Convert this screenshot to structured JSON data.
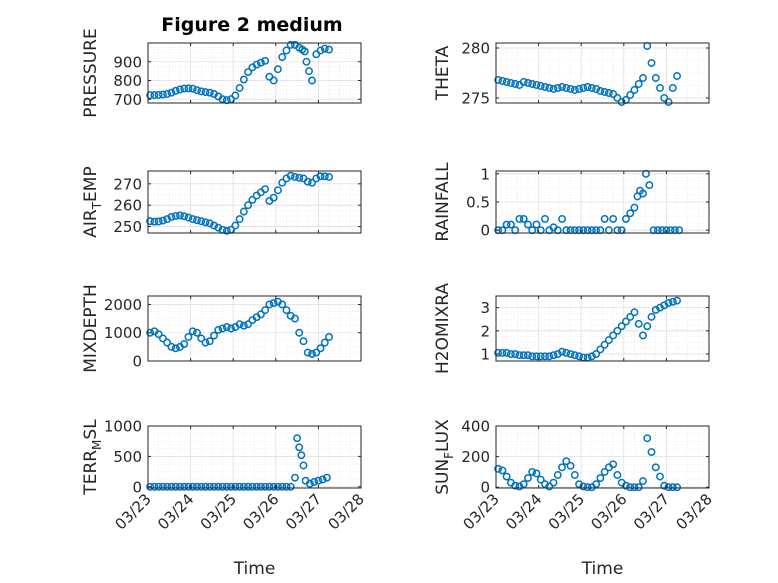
{
  "figure": {
    "title": "Figure 2 medium",
    "xlabel": "Time",
    "x_ticks": [
      "03/23",
      "03/24",
      "03/25",
      "03/26",
      "03/27",
      "03/28"
    ],
    "colors": {
      "marker": "#0072bd",
      "axis": "#262626",
      "grid": "#dfdfdf",
      "background": "#ffffff"
    }
  },
  "chart_data": [
    {
      "type": "scatter",
      "title": "Figure 2 medium",
      "ylabel": "PRESSURE",
      "xlabel": "",
      "ylim": [
        680,
        1000
      ],
      "yticks": [
        700,
        800,
        900
      ],
      "xlim": [
        0,
        5
      ],
      "x": [
        0.05,
        0.15,
        0.25,
        0.35,
        0.45,
        0.55,
        0.65,
        0.75,
        0.85,
        0.95,
        1.05,
        1.15,
        1.25,
        1.35,
        1.45,
        1.55,
        1.65,
        1.75,
        1.85,
        1.95,
        2.05,
        2.15,
        2.25,
        2.35,
        2.45,
        2.55,
        2.65,
        2.75,
        2.85,
        2.95,
        3.05,
        3.15,
        3.25,
        3.35,
        3.45,
        3.55,
        3.62,
        3.68,
        3.72,
        3.78,
        3.85,
        3.95,
        4.05,
        4.15,
        4.25
      ],
      "y": [
        722,
        722,
        723,
        725,
        728,
        735,
        745,
        752,
        757,
        758,
        756,
        748,
        742,
        738,
        735,
        728,
        715,
        700,
        695,
        700,
        720,
        760,
        805,
        845,
        870,
        885,
        895,
        905,
        820,
        800,
        860,
        925,
        960,
        990,
        990,
        975,
        965,
        955,
        900,
        850,
        800,
        940,
        960,
        970,
        965
      ]
    },
    {
      "type": "scatter",
      "ylabel": "THETA",
      "xlabel": "",
      "ylim": [
        274.5,
        280.5
      ],
      "yticks": [
        275,
        280
      ],
      "xlim": [
        0,
        5
      ],
      "x": [
        0.05,
        0.15,
        0.25,
        0.35,
        0.45,
        0.55,
        0.65,
        0.75,
        0.85,
        0.95,
        1.05,
        1.15,
        1.25,
        1.35,
        1.45,
        1.55,
        1.65,
        1.75,
        1.85,
        1.95,
        2.05,
        2.15,
        2.25,
        2.35,
        2.45,
        2.55,
        2.65,
        2.75,
        2.85,
        2.95,
        3.05,
        3.15,
        3.25,
        3.35,
        3.45,
        3.55,
        3.65,
        3.75,
        3.85,
        3.95,
        4.05,
        4.15,
        4.25
      ],
      "y": [
        276.8,
        276.7,
        276.6,
        276.5,
        276.4,
        276.3,
        276.6,
        276.5,
        276.4,
        276.3,
        276.2,
        276.1,
        276.0,
        275.9,
        276.0,
        276.1,
        276.0,
        275.9,
        275.8,
        275.9,
        276.0,
        276.1,
        276.0,
        275.9,
        275.7,
        275.6,
        275.5,
        275.4,
        275.0,
        274.6,
        274.8,
        275.3,
        275.8,
        276.4,
        277.0,
        280.2,
        278.5,
        277.0,
        276.0,
        275.0,
        274.6,
        276.0,
        277.2
      ]
    },
    {
      "type": "scatter",
      "ylabel": "AIR_TEMP",
      "xlabel": "",
      "ylim": [
        247,
        276
      ],
      "yticks": [
        250,
        260,
        270
      ],
      "xlim": [
        0,
        5
      ],
      "x": [
        0.05,
        0.15,
        0.25,
        0.35,
        0.45,
        0.55,
        0.65,
        0.75,
        0.85,
        0.95,
        1.05,
        1.15,
        1.25,
        1.35,
        1.45,
        1.55,
        1.65,
        1.75,
        1.85,
        1.95,
        2.05,
        2.15,
        2.25,
        2.35,
        2.45,
        2.55,
        2.65,
        2.75,
        2.85,
        2.95,
        3.05,
        3.15,
        3.25,
        3.35,
        3.45,
        3.55,
        3.65,
        3.75,
        3.85,
        3.95,
        4.05,
        4.15,
        4.25
      ],
      "y": [
        252.5,
        252.3,
        252.4,
        252.8,
        253.5,
        254.5,
        255.0,
        255.2,
        254.8,
        254.2,
        253.5,
        253.0,
        252.5,
        252.0,
        251.5,
        250.5,
        249.5,
        248.5,
        248.0,
        248.5,
        250.5,
        253.5,
        257.0,
        260.0,
        262.5,
        264.5,
        266.0,
        267.5,
        262.0,
        263.5,
        267.0,
        270.5,
        272.5,
        273.8,
        273.2,
        272.8,
        272.5,
        271.0,
        270.5,
        272.5,
        273.5,
        273.5,
        273.2
      ]
    },
    {
      "type": "scatter",
      "ylabel": "RAINFALL",
      "xlabel": "",
      "ylim": [
        -0.05,
        1.05
      ],
      "yticks": [
        0,
        0.5,
        1
      ],
      "xlim": [
        0,
        5
      ],
      "x": [
        0.05,
        0.15,
        0.25,
        0.35,
        0.45,
        0.55,
        0.65,
        0.75,
        0.85,
        0.95,
        1.05,
        1.15,
        1.25,
        1.35,
        1.45,
        1.55,
        1.65,
        1.75,
        1.85,
        1.95,
        2.05,
        2.15,
        2.25,
        2.35,
        2.45,
        2.55,
        2.65,
        2.75,
        2.85,
        2.95,
        3.05,
        3.15,
        3.25,
        3.32,
        3.38,
        3.45,
        3.52,
        3.6,
        3.7,
        3.8,
        3.9,
        4.0,
        4.1,
        4.2,
        4.3
      ],
      "y": [
        0,
        0,
        0.1,
        0.1,
        0,
        0.2,
        0.2,
        0.1,
        0,
        0.1,
        0,
        0.2,
        0,
        0.05,
        0,
        0.2,
        0,
        0,
        0,
        0,
        0,
        0,
        0,
        0,
        0,
        0.2,
        0,
        0.2,
        0,
        0,
        0.2,
        0.3,
        0.4,
        0.6,
        0.7,
        0.65,
        1.0,
        0.8,
        0,
        0,
        0,
        0,
        0,
        0,
        0
      ]
    },
    {
      "type": "scatter",
      "ylabel": "MIXDEPTH",
      "xlabel": "",
      "ylim": [
        0,
        2300
      ],
      "yticks": [
        0,
        1000,
        2000
      ],
      "xlim": [
        0,
        5
      ],
      "x": [
        0.05,
        0.15,
        0.25,
        0.35,
        0.45,
        0.55,
        0.65,
        0.75,
        0.85,
        0.95,
        1.05,
        1.15,
        1.25,
        1.35,
        1.45,
        1.55,
        1.65,
        1.75,
        1.85,
        1.95,
        2.05,
        2.15,
        2.25,
        2.35,
        2.45,
        2.55,
        2.65,
        2.75,
        2.85,
        2.95,
        3.05,
        3.15,
        3.25,
        3.35,
        3.45,
        3.55,
        3.65,
        3.75,
        3.85,
        3.95,
        4.05,
        4.15,
        4.25
      ],
      "y": [
        1000,
        1050,
        950,
        800,
        650,
        500,
        450,
        500,
        600,
        850,
        1050,
        1000,
        800,
        650,
        700,
        900,
        1100,
        1150,
        1200,
        1150,
        1200,
        1300,
        1250,
        1300,
        1450,
        1550,
        1650,
        1800,
        2000,
        2050,
        2100,
        2000,
        1800,
        1600,
        1500,
        1000,
        700,
        300,
        250,
        300,
        450,
        650,
        850
      ]
    },
    {
      "type": "scatter",
      "ylabel": "H2OMIXRA",
      "xlabel": "",
      "ylim": [
        0.7,
        3.5
      ],
      "yticks": [
        1,
        2,
        3
      ],
      "xlim": [
        0,
        5
      ],
      "x": [
        0.05,
        0.15,
        0.25,
        0.35,
        0.45,
        0.55,
        0.65,
        0.75,
        0.85,
        0.95,
        1.05,
        1.15,
        1.25,
        1.35,
        1.45,
        1.55,
        1.65,
        1.75,
        1.85,
        1.95,
        2.05,
        2.15,
        2.25,
        2.35,
        2.45,
        2.55,
        2.65,
        2.75,
        2.85,
        2.95,
        3.05,
        3.15,
        3.25,
        3.35,
        3.45,
        3.55,
        3.65,
        3.75,
        3.85,
        3.95,
        4.05,
        4.15,
        4.25
      ],
      "y": [
        1.05,
        1.05,
        1.05,
        1.0,
        1.0,
        0.95,
        0.95,
        0.95,
        0.9,
        0.9,
        0.9,
        0.9,
        0.9,
        0.95,
        1.0,
        1.1,
        1.05,
        1.0,
        0.95,
        0.9,
        0.85,
        0.85,
        0.9,
        1.0,
        1.2,
        1.4,
        1.6,
        1.8,
        2.0,
        2.2,
        2.4,
        2.6,
        2.8,
        2.3,
        1.8,
        2.2,
        2.6,
        2.9,
        3.0,
        3.1,
        3.2,
        3.25,
        3.3
      ]
    },
    {
      "type": "scatter",
      "ylabel": "TERR_MSL",
      "xlabel": "Time",
      "ylim": [
        -20,
        1000
      ],
      "yticks": [
        0,
        500,
        1000
      ],
      "xlim": [
        0,
        5
      ],
      "x": [
        0.05,
        0.15,
        0.25,
        0.35,
        0.45,
        0.55,
        0.65,
        0.75,
        0.85,
        0.95,
        1.05,
        1.15,
        1.25,
        1.35,
        1.45,
        1.55,
        1.65,
        1.75,
        1.85,
        1.95,
        2.05,
        2.15,
        2.25,
        2.35,
        2.45,
        2.55,
        2.65,
        2.75,
        2.85,
        2.95,
        3.05,
        3.15,
        3.25,
        3.35,
        3.45,
        3.5,
        3.55,
        3.6,
        3.65,
        3.7,
        3.8,
        3.9,
        4.0,
        4.1,
        4.2
      ],
      "y": [
        0,
        0,
        0,
        0,
        0,
        0,
        0,
        0,
        0,
        0,
        0,
        0,
        0,
        0,
        0,
        0,
        0,
        0,
        0,
        0,
        0,
        0,
        0,
        0,
        0,
        0,
        0,
        0,
        0,
        0,
        0,
        0,
        0,
        0,
        150,
        800,
        650,
        520,
        350,
        100,
        50,
        80,
        100,
        120,
        150
      ]
    },
    {
      "type": "scatter",
      "ylabel": "SUN_FLUX",
      "xlabel": "Time",
      "ylim": [
        -5,
        400
      ],
      "yticks": [
        0,
        200,
        400
      ],
      "xlim": [
        0,
        5
      ],
      "x": [
        0.05,
        0.15,
        0.25,
        0.35,
        0.45,
        0.55,
        0.65,
        0.75,
        0.85,
        0.95,
        1.05,
        1.15,
        1.25,
        1.35,
        1.45,
        1.55,
        1.65,
        1.75,
        1.85,
        1.95,
        2.05,
        2.15,
        2.25,
        2.35,
        2.45,
        2.55,
        2.65,
        2.75,
        2.85,
        2.95,
        3.05,
        3.15,
        3.25,
        3.35,
        3.45,
        3.55,
        3.65,
        3.75,
        3.85,
        3.95,
        4.05,
        4.15,
        4.25
      ],
      "y": [
        120,
        110,
        70,
        30,
        10,
        5,
        20,
        60,
        100,
        90,
        50,
        20,
        5,
        30,
        80,
        130,
        170,
        140,
        80,
        20,
        5,
        0,
        0,
        20,
        60,
        100,
        130,
        150,
        80,
        30,
        10,
        0,
        0,
        0,
        40,
        320,
        230,
        130,
        70,
        10,
        0,
        0,
        0
      ]
    }
  ]
}
